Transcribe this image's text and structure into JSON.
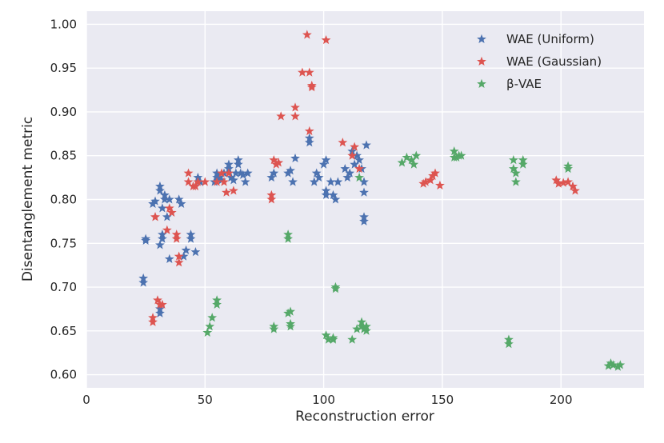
{
  "chart_data": {
    "type": "scatter",
    "title": "",
    "xlabel": "Reconstruction error",
    "ylabel": "Disentanglement metric",
    "xlim": [
      0,
      235
    ],
    "ylim": [
      0.585,
      1.015
    ],
    "xticks": [
      0,
      50,
      100,
      150,
      200
    ],
    "yticks": [
      0.6,
      0.65,
      0.7,
      0.75,
      0.8,
      0.85,
      0.9,
      0.95,
      1.0
    ],
    "xtick_labels": [
      "0",
      "50",
      "100",
      "150",
      "200"
    ],
    "ytick_labels": [
      "0.60",
      "0.65",
      "0.70",
      "0.75",
      "0.80",
      "0.85",
      "0.90",
      "0.95",
      "1.00"
    ],
    "grid": true,
    "legend_position": "top-right",
    "marker": "star",
    "series": [
      {
        "name": "WAE (Uniform)",
        "legend_label": "WAE (Uniform)",
        "color": "#4c72b0",
        "points": [
          [
            24,
            0.705
          ],
          [
            24,
            0.71
          ],
          [
            25,
            0.755
          ],
          [
            25,
            0.753
          ],
          [
            28,
            0.795
          ],
          [
            29,
            0.798
          ],
          [
            31,
            0.67
          ],
          [
            31,
            0.675
          ],
          [
            31,
            0.748
          ],
          [
            31,
            0.81
          ],
          [
            31,
            0.815
          ],
          [
            32,
            0.79
          ],
          [
            32,
            0.76
          ],
          [
            32,
            0.755
          ],
          [
            33,
            0.8
          ],
          [
            33,
            0.805
          ],
          [
            34,
            0.78
          ],
          [
            35,
            0.8
          ],
          [
            35,
            0.732
          ],
          [
            39,
            0.8
          ],
          [
            40,
            0.795
          ],
          [
            41,
            0.735
          ],
          [
            42,
            0.742
          ],
          [
            44,
            0.76
          ],
          [
            44,
            0.755
          ],
          [
            46,
            0.74
          ],
          [
            47,
            0.825
          ],
          [
            48,
            0.82
          ],
          [
            54,
            0.82
          ],
          [
            55,
            0.825
          ],
          [
            55,
            0.83
          ],
          [
            56,
            0.825
          ],
          [
            57,
            0.822
          ],
          [
            58,
            0.83
          ],
          [
            60,
            0.835
          ],
          [
            60,
            0.84
          ],
          [
            61,
            0.825
          ],
          [
            62,
            0.822
          ],
          [
            63,
            0.83
          ],
          [
            64,
            0.84
          ],
          [
            64,
            0.845
          ],
          [
            65,
            0.83
          ],
          [
            66,
            0.828
          ],
          [
            67,
            0.82
          ],
          [
            68,
            0.83
          ],
          [
            78,
            0.825
          ],
          [
            79,
            0.83
          ],
          [
            85,
            0.83
          ],
          [
            86,
            0.833
          ],
          [
            87,
            0.82
          ],
          [
            88,
            0.847
          ],
          [
            94,
            0.865
          ],
          [
            94,
            0.87
          ],
          [
            96,
            0.82
          ],
          [
            97,
            0.83
          ],
          [
            98,
            0.825
          ],
          [
            100,
            0.84
          ],
          [
            101,
            0.845
          ],
          [
            101,
            0.805
          ],
          [
            101,
            0.81
          ],
          [
            103,
            0.82
          ],
          [
            104,
            0.805
          ],
          [
            105,
            0.8
          ],
          [
            106,
            0.82
          ],
          [
            109,
            0.835
          ],
          [
            110,
            0.825
          ],
          [
            111,
            0.83
          ],
          [
            112,
            0.855
          ],
          [
            113,
            0.84
          ],
          [
            114,
            0.85
          ],
          [
            115,
            0.845
          ],
          [
            116,
            0.835
          ],
          [
            117,
            0.82
          ],
          [
            117,
            0.808
          ],
          [
            117,
            0.78
          ],
          [
            117,
            0.775
          ],
          [
            118,
            0.862
          ]
        ]
      },
      {
        "name": "WAE (Gaussian)",
        "legend_label": "WAE (Gaussian)",
        "color": "#dd5450",
        "points": [
          [
            28,
            0.66
          ],
          [
            28,
            0.665
          ],
          [
            29,
            0.78
          ],
          [
            29,
            0.78
          ],
          [
            30,
            0.685
          ],
          [
            31,
            0.68
          ],
          [
            32,
            0.68
          ],
          [
            34,
            0.765
          ],
          [
            35,
            0.79
          ],
          [
            36,
            0.785
          ],
          [
            38,
            0.76
          ],
          [
            38,
            0.755
          ],
          [
            39,
            0.735
          ],
          [
            39,
            0.728
          ],
          [
            43,
            0.82
          ],
          [
            43,
            0.83
          ],
          [
            45,
            0.815
          ],
          [
            46,
            0.815
          ],
          [
            47,
            0.82
          ],
          [
            50,
            0.82
          ],
          [
            55,
            0.82
          ],
          [
            57,
            0.83
          ],
          [
            58,
            0.82
          ],
          [
            59,
            0.808
          ],
          [
            60,
            0.83
          ],
          [
            62,
            0.81
          ],
          [
            78,
            0.8
          ],
          [
            78,
            0.805
          ],
          [
            79,
            0.845
          ],
          [
            80,
            0.84
          ],
          [
            81,
            0.842
          ],
          [
            82,
            0.895
          ],
          [
            88,
            0.895
          ],
          [
            88,
            0.905
          ],
          [
            91,
            0.945
          ],
          [
            93,
            0.988
          ],
          [
            94,
            0.878
          ],
          [
            94,
            0.945
          ],
          [
            95,
            0.928
          ],
          [
            95,
            0.93
          ],
          [
            101,
            0.982
          ],
          [
            108,
            0.865
          ],
          [
            112,
            0.85
          ],
          [
            113,
            0.86
          ],
          [
            115,
            0.835
          ],
          [
            142,
            0.818
          ],
          [
            143,
            0.82
          ],
          [
            145,
            0.822
          ],
          [
            146,
            0.827
          ],
          [
            147,
            0.83
          ],
          [
            149,
            0.816
          ],
          [
            198,
            0.822
          ],
          [
            199,
            0.818
          ],
          [
            201,
            0.819
          ],
          [
            203,
            0.82
          ],
          [
            205,
            0.815
          ],
          [
            206,
            0.81
          ]
        ]
      },
      {
        "name": "β-VAE",
        "legend_label": "β-VAE",
        "color": "#55a868",
        "points": [
          [
            51,
            0.648
          ],
          [
            52,
            0.655
          ],
          [
            53,
            0.665
          ],
          [
            55,
            0.68
          ],
          [
            55,
            0.685
          ],
          [
            79,
            0.655
          ],
          [
            79,
            0.652
          ],
          [
            85,
            0.76
          ],
          [
            85,
            0.755
          ],
          [
            85,
            0.67
          ],
          [
            86,
            0.672
          ],
          [
            86,
            0.655
          ],
          [
            86,
            0.658
          ],
          [
            101,
            0.645
          ],
          [
            102,
            0.64
          ],
          [
            104,
            0.642
          ],
          [
            104,
            0.64
          ],
          [
            105,
            0.698
          ],
          [
            105,
            0.7
          ],
          [
            112,
            0.64
          ],
          [
            114,
            0.652
          ],
          [
            115,
            0.825
          ],
          [
            116,
            0.66
          ],
          [
            116,
            0.655
          ],
          [
            117,
            0.652
          ],
          [
            118,
            0.65
          ],
          [
            118,
            0.655
          ],
          [
            133,
            0.842
          ],
          [
            135,
            0.848
          ],
          [
            137,
            0.845
          ],
          [
            138,
            0.84
          ],
          [
            139,
            0.85
          ],
          [
            155,
            0.848
          ],
          [
            155,
            0.855
          ],
          [
            156,
            0.848
          ],
          [
            157,
            0.85
          ],
          [
            158,
            0.85
          ],
          [
            178,
            0.64
          ],
          [
            178,
            0.635
          ],
          [
            180,
            0.845
          ],
          [
            180,
            0.835
          ],
          [
            181,
            0.83
          ],
          [
            181,
            0.82
          ],
          [
            184,
            0.845
          ],
          [
            184,
            0.84
          ],
          [
            203,
            0.835
          ],
          [
            203,
            0.838
          ],
          [
            220,
            0.61
          ],
          [
            221,
            0.613
          ],
          [
            222,
            0.611
          ],
          [
            224,
            0.609
          ],
          [
            225,
            0.611
          ]
        ]
      }
    ]
  }
}
